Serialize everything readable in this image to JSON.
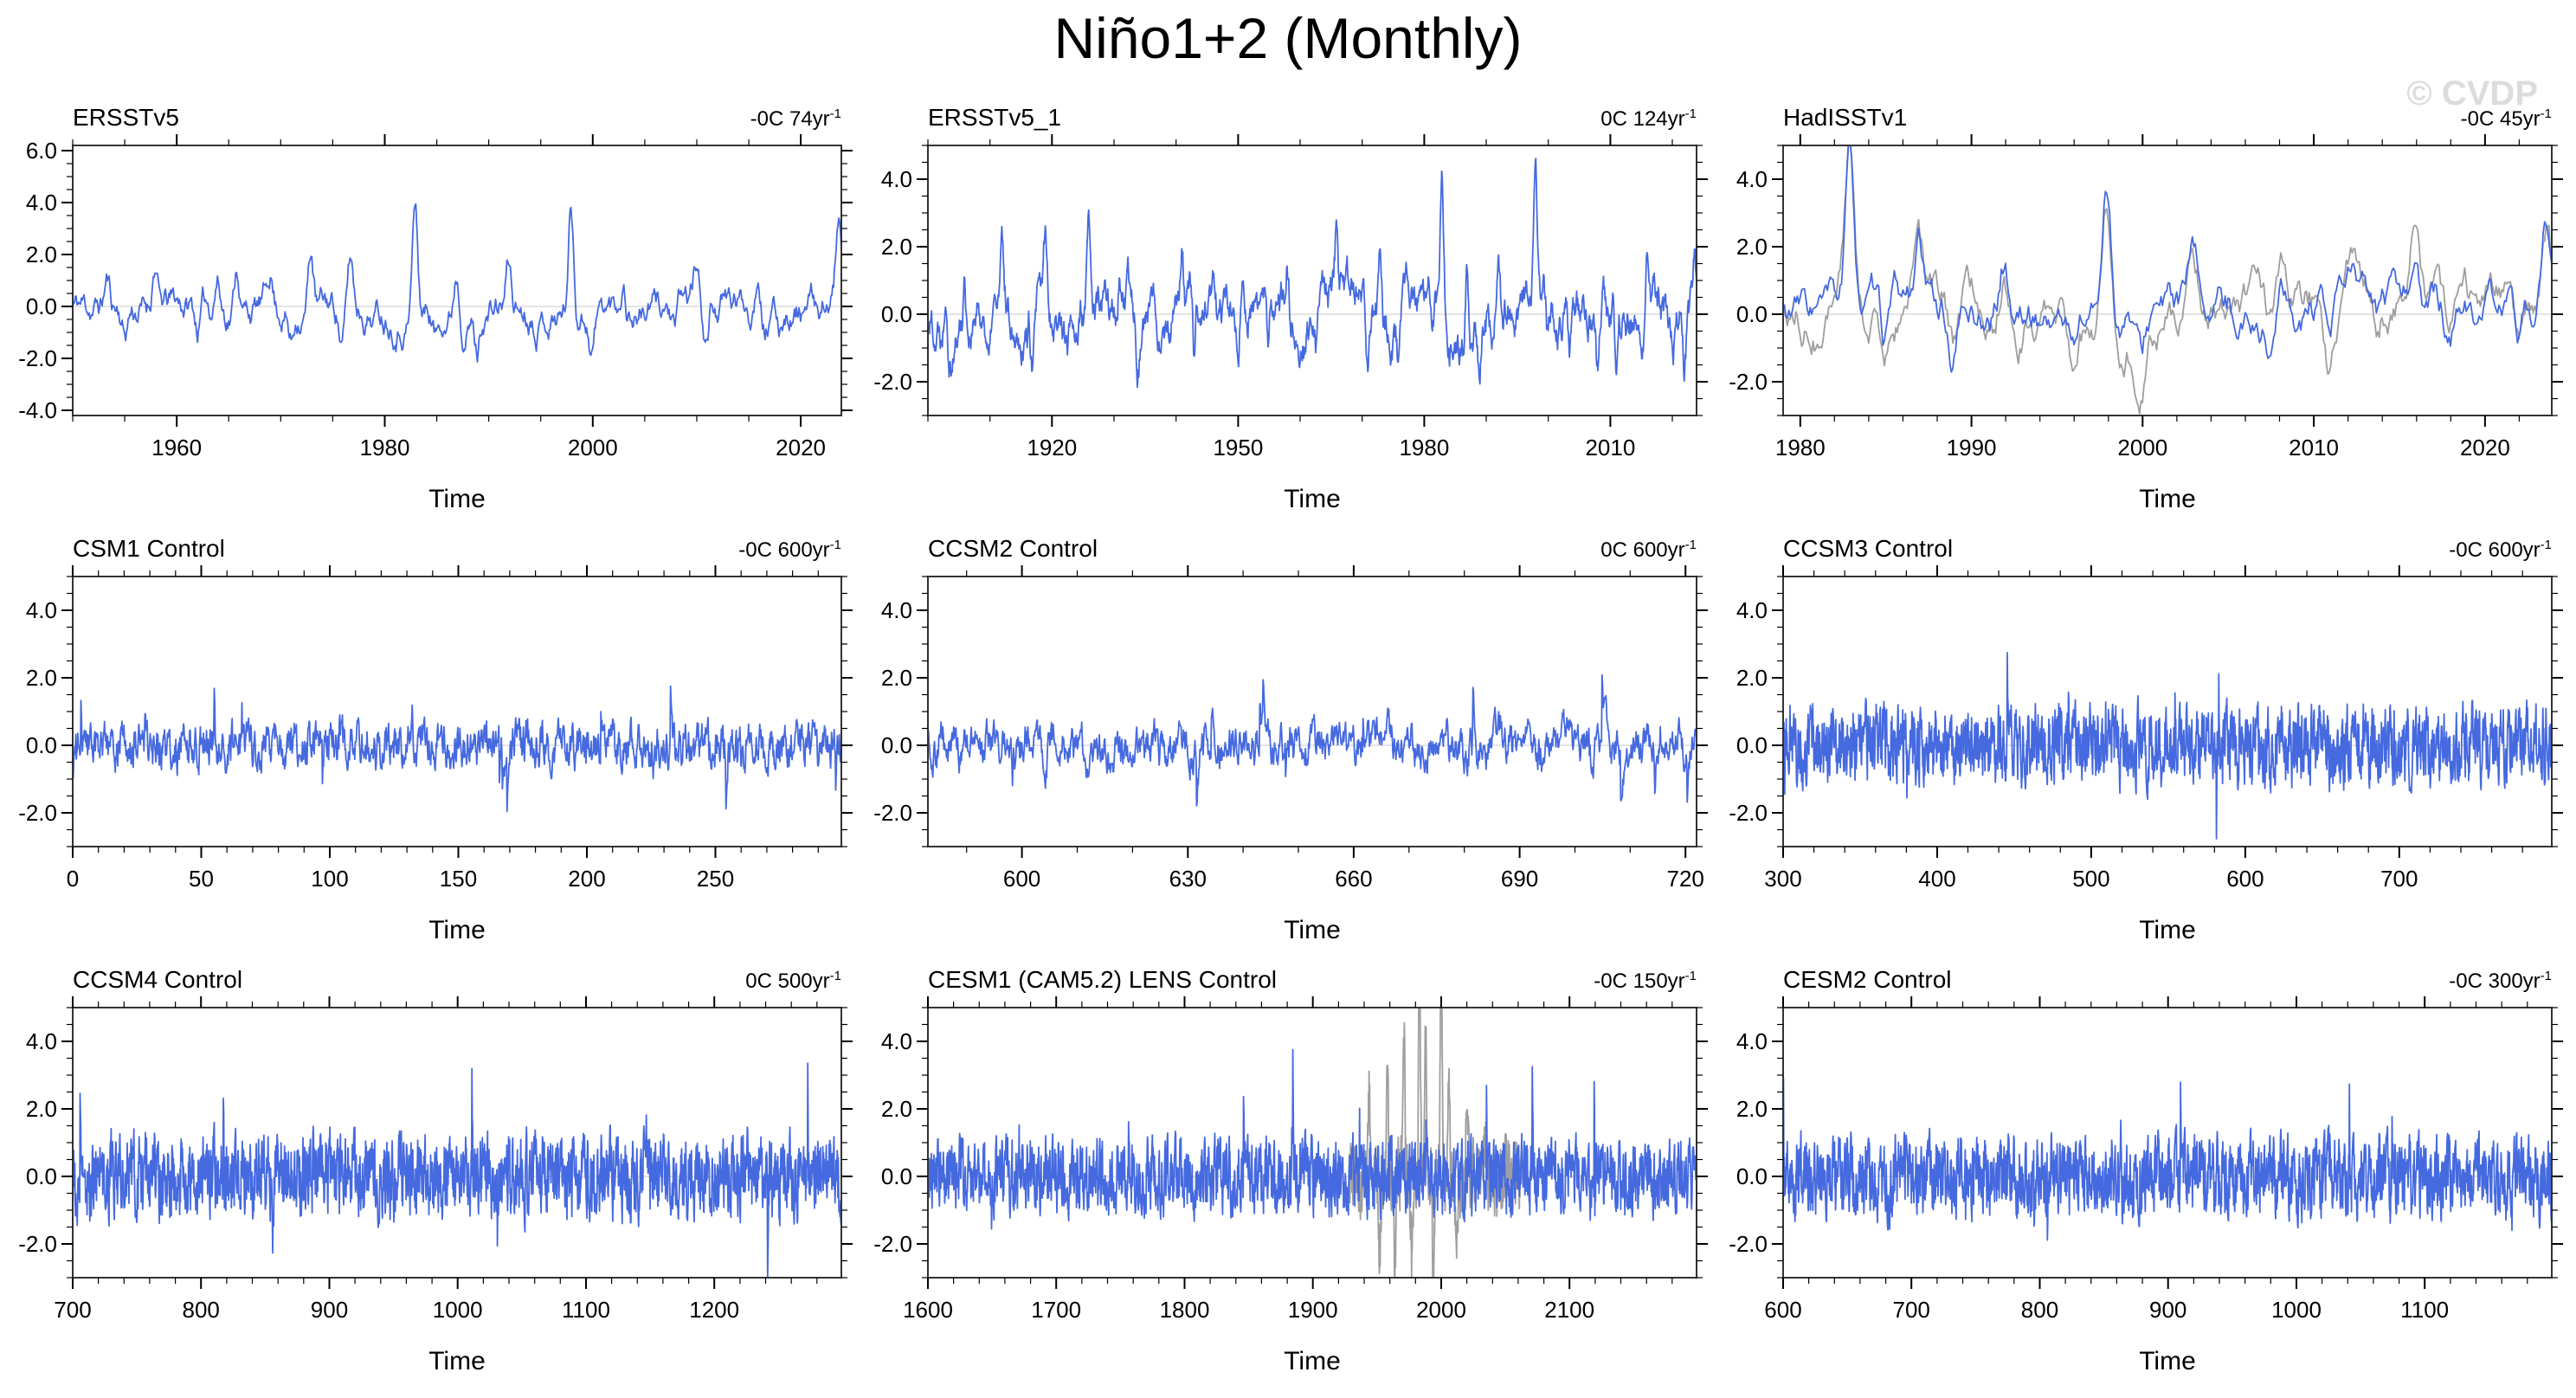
{
  "page": {
    "title": "Niño1+2 (Monthly)",
    "watermark": "© CVDP"
  },
  "colors": {
    "line": "#4569DF",
    "secondary": "#9e9e9e",
    "zero_line": "#c9c9c9",
    "frame": "#333333",
    "tick": "#000000"
  },
  "chart_data": [
    {
      "type": "line",
      "title": "ERSSTv5",
      "trend_label": "-0C 74yr",
      "trend_exponent": "-1",
      "xlabel": "Time",
      "x": {
        "min": 1950,
        "max": 2023.9,
        "tick_values": [
          1960,
          1980,
          2000,
          2020
        ],
        "tick_labels": [
          "1960",
          "1980",
          "2000",
          "2020"
        ],
        "minor_step": 5
      },
      "y": {
        "min": -4.2,
        "max": 6.2,
        "tick_values": [
          6,
          4,
          2,
          0,
          -2,
          -4
        ],
        "tick_labels": [
          "6.0",
          "4.0",
          "2.0",
          "0.0",
          "-2.0",
          "-4.0"
        ],
        "minor_step": 0.5
      },
      "series": [
        {
          "name": "primary",
          "color_key": "line",
          "seed": 11,
          "n": 888,
          "persistence": 0.93,
          "noise": 0.35,
          "clamp": [
            -2.0,
            2.5
          ],
          "spike_sigma": 0.35,
          "spikes": [
            [
              1953.3,
              1.0
            ],
            [
              1955.0,
              -0.9
            ],
            [
              1957.9,
              1.8
            ],
            [
              1962.0,
              -0.8
            ],
            [
              1963.9,
              1.3
            ],
            [
              1965.8,
              1.8
            ],
            [
              1969.0,
              1.3
            ],
            [
              1971.0,
              -1.2
            ],
            [
              1972.9,
              2.3
            ],
            [
              1975.9,
              -1.3
            ],
            [
              1976.7,
              1.7
            ],
            [
              1982.9,
              4.2
            ],
            [
              1984.9,
              -1.0
            ],
            [
              1986.9,
              1.8
            ],
            [
              1988.9,
              -1.5
            ],
            [
              1991.9,
              1.6
            ],
            [
              1997.9,
              4.0
            ],
            [
              1999.9,
              -1.2
            ],
            [
              2002.9,
              1.1
            ],
            [
              2007.9,
              -1.2
            ],
            [
              2009.9,
              1.2
            ],
            [
              2010.9,
              -1.4
            ],
            [
              2015.9,
              1.9
            ],
            [
              2017.9,
              -0.9
            ],
            [
              2021.9,
              -1.1
            ],
            [
              2023.6,
              3.1
            ]
          ]
        }
      ]
    },
    {
      "type": "line",
      "title": "ERSSTv5_1",
      "trend_label": "0C 124yr",
      "trend_exponent": "-1",
      "xlabel": "Time",
      "x": {
        "min": 1900,
        "max": 2023.9,
        "tick_values": [
          1920,
          1950,
          1980,
          2010
        ],
        "tick_labels": [
          "1920",
          "1950",
          "1980",
          "2010"
        ],
        "minor_step": 10
      },
      "y": {
        "min": -3.0,
        "max": 5.0,
        "tick_values": [
          4,
          2,
          0,
          -2
        ],
        "tick_labels": [
          "4.0",
          "2.0",
          "0.0",
          "-2.0"
        ],
        "minor_step": 0.5
      },
      "series": [
        {
          "name": "primary",
          "color_key": "line",
          "seed": 22,
          "n": 1488,
          "persistence": 0.92,
          "noise": 0.38,
          "clamp": [
            -2.3,
            2.4
          ],
          "spike_sigma": 0.35,
          "spikes": [
            [
              1902.9,
              1.7
            ],
            [
              1905.9,
              1.4
            ],
            [
              1909.9,
              -1.4
            ],
            [
              1911.9,
              1.5
            ],
            [
              1916.9,
              -1.5
            ],
            [
              1918.9,
              1.8
            ],
            [
              1922.5,
              -1.1
            ],
            [
              1925.9,
              2.2
            ],
            [
              1930.9,
              1.5
            ],
            [
              1933.9,
              -1.2
            ],
            [
              1940.9,
              1.9
            ],
            [
              1942.9,
              -1.3
            ],
            [
              1946.0,
              1.2
            ],
            [
              1950.0,
              -1.5
            ],
            [
              1954.9,
              -1.9
            ],
            [
              1957.9,
              1.7
            ],
            [
              1962.5,
              -1.1
            ],
            [
              1965.8,
              1.7
            ],
            [
              1970.9,
              -1.3
            ],
            [
              1972.9,
              2.2
            ],
            [
              1975.9,
              -1.7
            ],
            [
              1982.9,
              4.2
            ],
            [
              1986.9,
              1.6
            ],
            [
              1988.9,
              -1.6
            ],
            [
              1991.9,
              1.5
            ],
            [
              1997.9,
              4.3
            ],
            [
              1999.9,
              -1.4
            ],
            [
              2002.9,
              1.1
            ],
            [
              2007.9,
              -1.3
            ],
            [
              2010.9,
              -1.5
            ],
            [
              2015.9,
              1.9
            ],
            [
              2021.9,
              -1.2
            ],
            [
              2023.6,
              2.2
            ]
          ]
        }
      ]
    },
    {
      "type": "line",
      "title": "HadISSTv1",
      "trend_label": "-0C 45yr",
      "trend_exponent": "-1",
      "xlabel": "Time",
      "x": {
        "min": 1979,
        "max": 2023.9,
        "tick_values": [
          1980,
          1990,
          2000,
          2010,
          2020
        ],
        "tick_labels": [
          "1980",
          "1990",
          "2000",
          "2010",
          "2020"
        ],
        "minor_step": 2
      },
      "y": {
        "min": -3.0,
        "max": 5.0,
        "tick_values": [
          4,
          2,
          0,
          -2
        ],
        "tick_labels": [
          "4.0",
          "2.0",
          "0.0",
          "-2.0"
        ],
        "minor_step": 0.5
      },
      "series": [
        {
          "name": "secondary",
          "color_key": "secondary",
          "seed": 34,
          "n": 540,
          "persistence": 0.93,
          "noise": 0.36,
          "clamp": [
            -2.2,
            2.4
          ],
          "spike_sigma": 0.38,
          "spike_scale": 1.06,
          "spikes": [
            [
              1982.9,
              4.1
            ],
            [
              1984.9,
              -1.2
            ],
            [
              1986.9,
              1.8
            ],
            [
              1988.9,
              -1.5
            ],
            [
              1991.9,
              1.5
            ],
            [
              1995.9,
              -0.9
            ],
            [
              1997.9,
              4.1
            ],
            [
              1999.9,
              -1.4
            ],
            [
              2002.9,
              1.0
            ],
            [
              2007.5,
              -1.1
            ],
            [
              2008.0,
              1.1
            ],
            [
              2010.9,
              -1.5
            ],
            [
              2012.2,
              0.9
            ],
            [
              2013.6,
              -0.7
            ],
            [
              2015.9,
              1.8
            ],
            [
              2017.9,
              -1.0
            ],
            [
              2021.9,
              -1.3
            ],
            [
              2023.6,
              2.3
            ]
          ]
        },
        {
          "name": "primary",
          "color_key": "line",
          "seed": 33,
          "n": 540,
          "persistence": 0.93,
          "noise": 0.34,
          "clamp": [
            -2.1,
            2.3
          ],
          "spike_sigma": 0.35,
          "spikes": [
            [
              1982.9,
              4.1
            ],
            [
              1984.9,
              -1.2
            ],
            [
              1986.9,
              1.8
            ],
            [
              1988.9,
              -1.5
            ],
            [
              1991.9,
              1.5
            ],
            [
              1995.9,
              -0.9
            ],
            [
              1997.9,
              4.1
            ],
            [
              1999.9,
              -1.4
            ],
            [
              2002.9,
              1.0
            ],
            [
              2007.5,
              -1.1
            ],
            [
              2008.0,
              1.1
            ],
            [
              2010.9,
              -1.5
            ],
            [
              2012.2,
              0.9
            ],
            [
              2013.6,
              -0.7
            ],
            [
              2015.9,
              1.8
            ],
            [
              2017.9,
              -1.0
            ],
            [
              2021.9,
              -1.3
            ],
            [
              2023.6,
              2.3
            ]
          ]
        }
      ]
    },
    {
      "type": "line",
      "title": "CSM1 Control",
      "trend_label": "-0C 600yr",
      "trend_exponent": "-1",
      "xlabel": "Time",
      "x": {
        "min": 0,
        "max": 299,
        "tick_values": [
          0,
          50,
          100,
          150,
          200,
          250
        ],
        "tick_labels": [
          "0",
          "50",
          "100",
          "150",
          "200",
          "250"
        ],
        "minor_step": 10
      },
      "y": {
        "min": -3.0,
        "max": 5.0,
        "tick_values": [
          4,
          2,
          0,
          -2
        ],
        "tick_labels": [
          "4.0",
          "2.0",
          "0.0",
          "-2.0"
        ],
        "minor_step": 0.5
      },
      "series": [
        {
          "name": "primary",
          "color_key": "line",
          "seed": 44,
          "n": 1500,
          "persistence": 0.6,
          "noise": 0.5,
          "clamp": [
            -1.95,
            2.45
          ],
          "impulse_prob": 0.01,
          "impulse_amp": 0.9,
          "start": -2.1
        }
      ]
    },
    {
      "type": "line",
      "title": "CCSM2 Control",
      "trend_label": "0C 600yr",
      "trend_exponent": "-1",
      "xlabel": "Time",
      "x": {
        "min": 583,
        "max": 722,
        "tick_values": [
          600,
          630,
          660,
          690,
          720
        ],
        "tick_labels": [
          "600",
          "630",
          "660",
          "690",
          "720"
        ],
        "minor_step": 10
      },
      "y": {
        "min": -3.0,
        "max": 5.0,
        "tick_values": [
          4,
          2,
          0,
          -2
        ],
        "tick_labels": [
          "4.0",
          "2.0",
          "0.0",
          "-2.0"
        ],
        "minor_step": 0.5
      },
      "series": [
        {
          "name": "primary",
          "color_key": "line",
          "seed": 55,
          "n": 1400,
          "persistence": 0.78,
          "noise": 0.42,
          "clamp": [
            -2.35,
            2.9
          ],
          "impulse_prob": 0.012,
          "impulse_amp": 0.9
        }
      ]
    },
    {
      "type": "line",
      "title": "CCSM3 Control",
      "trend_label": "-0C 600yr",
      "trend_exponent": "-1",
      "xlabel": "Time",
      "x": {
        "min": 300,
        "max": 799,
        "tick_values": [
          300,
          400,
          500,
          600,
          700
        ],
        "tick_labels": [
          "300",
          "400",
          "500",
          "600",
          "700"
        ],
        "minor_step": 20
      },
      "y": {
        "min": -3.0,
        "max": 5.0,
        "tick_values": [
          4,
          2,
          0,
          -2
        ],
        "tick_labels": [
          "4.0",
          "2.0",
          "0.0",
          "-2.0"
        ],
        "minor_step": 0.5
      },
      "series": [
        {
          "name": "primary",
          "color_key": "line",
          "seed": 66,
          "n": 2000,
          "persistence": 0.45,
          "noise": 0.95,
          "clamp": [
            -2.9,
            3.3
          ],
          "impulse_prob": 0.006,
          "impulse_amp": 1.1
        }
      ]
    },
    {
      "type": "line",
      "title": "CCSM4 Control",
      "trend_label": "0C 500yr",
      "trend_exponent": "-1",
      "xlabel": "Time",
      "x": {
        "min": 700,
        "max": 1299,
        "tick_values": [
          700,
          800,
          900,
          1000,
          1100,
          1200
        ],
        "tick_labels": [
          "700",
          "800",
          "900",
          "1000",
          "1100",
          "1200"
        ],
        "minor_step": 20
      },
      "y": {
        "min": -3.0,
        "max": 5.0,
        "tick_values": [
          4,
          2,
          0,
          -2
        ],
        "tick_labels": [
          "4.0",
          "2.0",
          "0.0",
          "-2.0"
        ],
        "minor_step": 0.5
      },
      "series": [
        {
          "name": "primary",
          "color_key": "line",
          "seed": 77,
          "n": 2200,
          "persistence": 0.45,
          "noise": 1.0,
          "clamp": [
            -3.3,
            4.4
          ],
          "impulse_prob": 0.007,
          "impulse_amp": 1.4
        }
      ]
    },
    {
      "type": "line",
      "title": "CESM1 (CAM5.2) LENS Control",
      "trend_label": "-0C 150yr",
      "trend_exponent": "-1",
      "xlabel": "Time",
      "x": {
        "min": 1600,
        "max": 2199,
        "tick_values": [
          1600,
          1700,
          1800,
          1900,
          2000,
          2100
        ],
        "tick_labels": [
          "1600",
          "1700",
          "1800",
          "1900",
          "2000",
          "2100"
        ],
        "minor_step": 20
      },
      "y": {
        "min": -3.0,
        "max": 5.0,
        "tick_values": [
          4,
          2,
          0,
          -2
        ],
        "tick_labels": [
          "4.0",
          "2.0",
          "0.0",
          "-2.0"
        ],
        "minor_step": 0.5
      },
      "series": [
        {
          "name": "secondary",
          "color_key": "secondary",
          "seed": 89,
          "n": 620,
          "x_range": [
            1928,
            2062
          ],
          "persistence": 0.5,
          "noise": 0.85,
          "clamp": [
            -2.4,
            2.4
          ],
          "spike_sigma": 1.1,
          "spikes": [
            [
              1944,
              2.4
            ],
            [
              1952,
              -2.2
            ],
            [
              1958,
              3.4
            ],
            [
              1964,
              -2.6
            ],
            [
              1971,
              4.6
            ],
            [
              1977,
              -2.3
            ],
            [
              1983,
              6.0
            ],
            [
              1988,
              4.0
            ],
            [
              1994,
              -2.9
            ],
            [
              2000,
              6.3
            ],
            [
              2006,
              3.1
            ],
            [
              2012,
              -2.2
            ],
            [
              2020,
              2.5
            ],
            [
              2035,
              1.6
            ],
            [
              2050,
              1.2
            ]
          ]
        },
        {
          "name": "primary",
          "color_key": "line",
          "seed": 88,
          "n": 2200,
          "persistence": 0.45,
          "noise": 0.9,
          "clamp": [
            -2.9,
            4.3
          ],
          "impulse_prob": 0.006,
          "impulse_amp": 1.3
        }
      ]
    },
    {
      "type": "line",
      "title": "CESM2 Control",
      "trend_label": "-0C 300yr",
      "trend_exponent": "-1",
      "xlabel": "Time",
      "x": {
        "min": 600,
        "max": 1199,
        "tick_values": [
          600,
          700,
          800,
          900,
          1000,
          1100
        ],
        "tick_labels": [
          "600",
          "700",
          "800",
          "900",
          "1000",
          "1100"
        ],
        "minor_step": 20
      },
      "y": {
        "min": -3.0,
        "max": 5.0,
        "tick_values": [
          4,
          2,
          0,
          -2
        ],
        "tick_labels": [
          "4.0",
          "2.0",
          "0.0",
          "-2.0"
        ],
        "minor_step": 0.5
      },
      "series": [
        {
          "name": "primary",
          "color_key": "line",
          "seed": 99,
          "n": 2200,
          "persistence": 0.45,
          "noise": 0.95,
          "clamp": [
            -3.0,
            4.5
          ],
          "impulse_prob": 0.007,
          "impulse_amp": 1.3
        }
      ]
    }
  ]
}
